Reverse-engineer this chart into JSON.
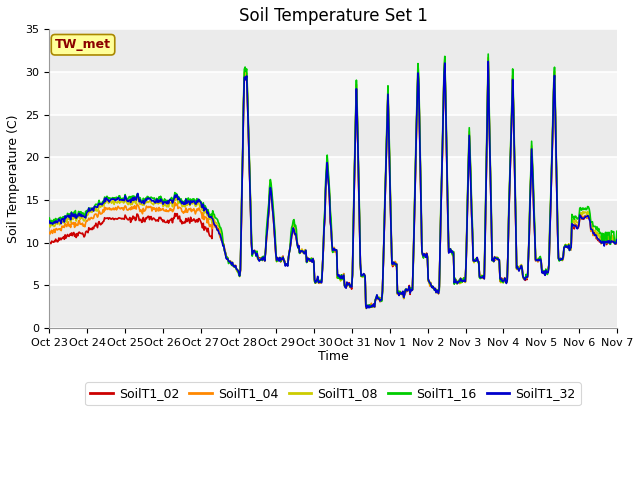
{
  "title": "Soil Temperature Set 1",
  "ylabel": "Soil Temperature (C)",
  "xlabel": "Time",
  "ylim": [
    0,
    35
  ],
  "annotation": "TW_met",
  "series_names": [
    "SoilT1_02",
    "SoilT1_04",
    "SoilT1_08",
    "SoilT1_16",
    "SoilT1_32"
  ],
  "series_colors": [
    "#cc0000",
    "#ff8800",
    "#cccc00",
    "#00cc00",
    "#0000cc"
  ],
  "xtick_labels": [
    "Oct 23",
    "Oct 24",
    "Oct 25",
    "Oct 26",
    "Oct 27",
    "Oct 28",
    "Oct 29",
    "Oct 30",
    "Oct 31",
    "Nov 1",
    "Nov 2",
    "Nov 3",
    "Nov 4",
    "Nov 5",
    "Nov 6",
    "Nov 7"
  ],
  "plot_bg_bands": [
    {
      "ymin": 0,
      "ymax": 5,
      "color": "#ebebeb"
    },
    {
      "ymin": 5,
      "ymax": 10,
      "color": "#f5f5f5"
    },
    {
      "ymin": 10,
      "ymax": 15,
      "color": "#ebebeb"
    },
    {
      "ymin": 15,
      "ymax": 20,
      "color": "#f5f5f5"
    },
    {
      "ymin": 20,
      "ymax": 25,
      "color": "#ebebeb"
    },
    {
      "ymin": 25,
      "ymax": 30,
      "color": "#f5f5f5"
    },
    {
      "ymin": 30,
      "ymax": 35,
      "color": "#ebebeb"
    }
  ],
  "title_fontsize": 12,
  "axis_fontsize": 9,
  "tick_fontsize": 8,
  "legend_fontsize": 9,
  "linewidth": 1.2,
  "fig_width": 6.4,
  "fig_height": 4.8,
  "dpi": 100
}
